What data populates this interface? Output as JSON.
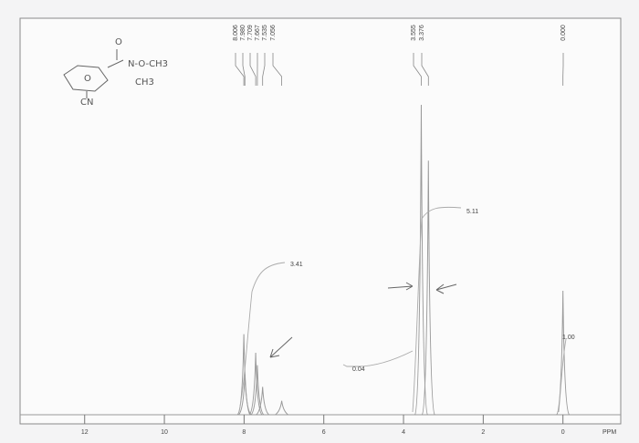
{
  "chart_data": {
    "type": "nmr",
    "x_label": "PPM",
    "xlim": [
      13.62,
      -1.45
    ],
    "xticks": [
      12,
      10,
      8,
      6,
      4,
      2,
      0
    ],
    "ylim": [
      0,
      100
    ],
    "peaks": {
      "x": [
        8.006,
        {
          "value": 7.98,
          "label": "7.980"
        },
        7.709,
        7.667,
        7.535,
        7.056,
        3.555,
        3.376,
        {
          "value": 0,
          "label": "0.000"
        }
      ],
      "values": [
        26,
        13,
        20,
        16,
        9,
        4.5,
        100,
        82,
        40
      ]
    },
    "integrals": [
      {
        "value": 3.41,
        "label": "3.41"
      },
      {
        "value": 5.11,
        "label": "5.11"
      },
      {
        "value": 0.04,
        "label": "0.04"
      },
      {
        "value": 1,
        "label": "1.00"
      }
    ],
    "sketch_labels": [
      "O",
      "N-O-CH3",
      "CH3",
      "O",
      "CN"
    ]
  }
}
